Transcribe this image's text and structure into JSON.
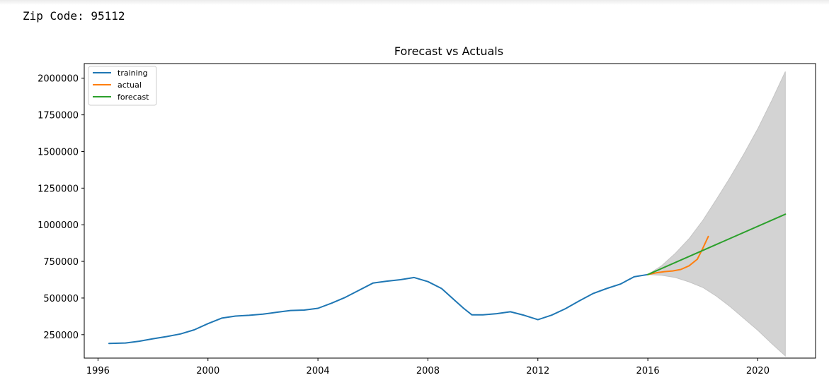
{
  "output": {
    "zip_label": "Zip Code: 95112"
  },
  "colors": {
    "training": "#1f77b4",
    "actual": "#ff7f0e",
    "forecast": "#2ca02c",
    "confidence_band": "#d3d3d3"
  },
  "chart_data": {
    "type": "line",
    "title": "Forecast vs Actuals",
    "xlabel": "",
    "ylabel": "",
    "xlim": [
      1995.5,
      2022.1
    ],
    "ylim": [
      90000,
      2100000
    ],
    "grid": false,
    "legend_position": "top-left",
    "x_ticks": [
      1996,
      2000,
      2004,
      2008,
      2012,
      2016,
      2020
    ],
    "x_tick_labels": [
      "1996",
      "2000",
      "2004",
      "2008",
      "2012",
      "2016",
      "2020"
    ],
    "y_ticks": [
      250000,
      500000,
      750000,
      1000000,
      1250000,
      1500000,
      1750000,
      2000000
    ],
    "y_tick_labels": [
      "250000",
      "500000",
      "750000",
      "1000000",
      "1250000",
      "1500000",
      "1750000",
      "2000000"
    ],
    "series": [
      {
        "name": "training",
        "x": [
          1996.4,
          1997.0,
          1997.5,
          1998.0,
          1998.5,
          1999.0,
          1999.5,
          2000.0,
          2000.5,
          2001.0,
          2001.5,
          2002.0,
          2002.5,
          2003.0,
          2003.5,
          2004.0,
          2004.5,
          2005.0,
          2005.5,
          2006.0,
          2006.5,
          2007.0,
          2007.5,
          2008.0,
          2008.5,
          2009.0,
          2009.3,
          2009.6,
          2010.0,
          2010.5,
          2011.0,
          2011.5,
          2012.0,
          2012.5,
          2013.0,
          2013.5,
          2014.0,
          2014.5,
          2015.0,
          2015.5,
          2016.0
        ],
        "y": [
          190000,
          193000,
          205000,
          222000,
          237000,
          255000,
          283000,
          325000,
          363000,
          377000,
          382000,
          390000,
          403000,
          415000,
          418000,
          430000,
          465000,
          505000,
          553000,
          602000,
          615000,
          625000,
          640000,
          612000,
          565000,
          480000,
          430000,
          385000,
          385000,
          393000,
          406000,
          382000,
          352000,
          383000,
          427000,
          480000,
          530000,
          565000,
          595000,
          645000,
          660000
        ]
      },
      {
        "name": "actual",
        "x": [
          2016.0,
          2016.3,
          2016.6,
          2016.9,
          2017.2,
          2017.5,
          2017.8,
          2018.0,
          2018.2
        ],
        "y": [
          660000,
          672000,
          680000,
          685000,
          695000,
          720000,
          765000,
          840000,
          920000
        ]
      },
      {
        "name": "forecast",
        "x": [
          2016.0,
          2021.0
        ],
        "y": [
          660000,
          1072000
        ]
      }
    ],
    "confidence_band": {
      "x": [
        2016.0,
        2016.5,
        2017.0,
        2017.5,
        2018.0,
        2018.5,
        2019.0,
        2019.5,
        2020.0,
        2020.5,
        2021.0
      ],
      "upper": [
        660000,
        720000,
        805000,
        905000,
        1030000,
        1175000,
        1325000,
        1485000,
        1655000,
        1845000,
        2045000
      ],
      "lower": [
        660000,
        655000,
        640000,
        610000,
        572000,
        512000,
        440000,
        360000,
        280000,
        190000,
        105000
      ]
    }
  }
}
